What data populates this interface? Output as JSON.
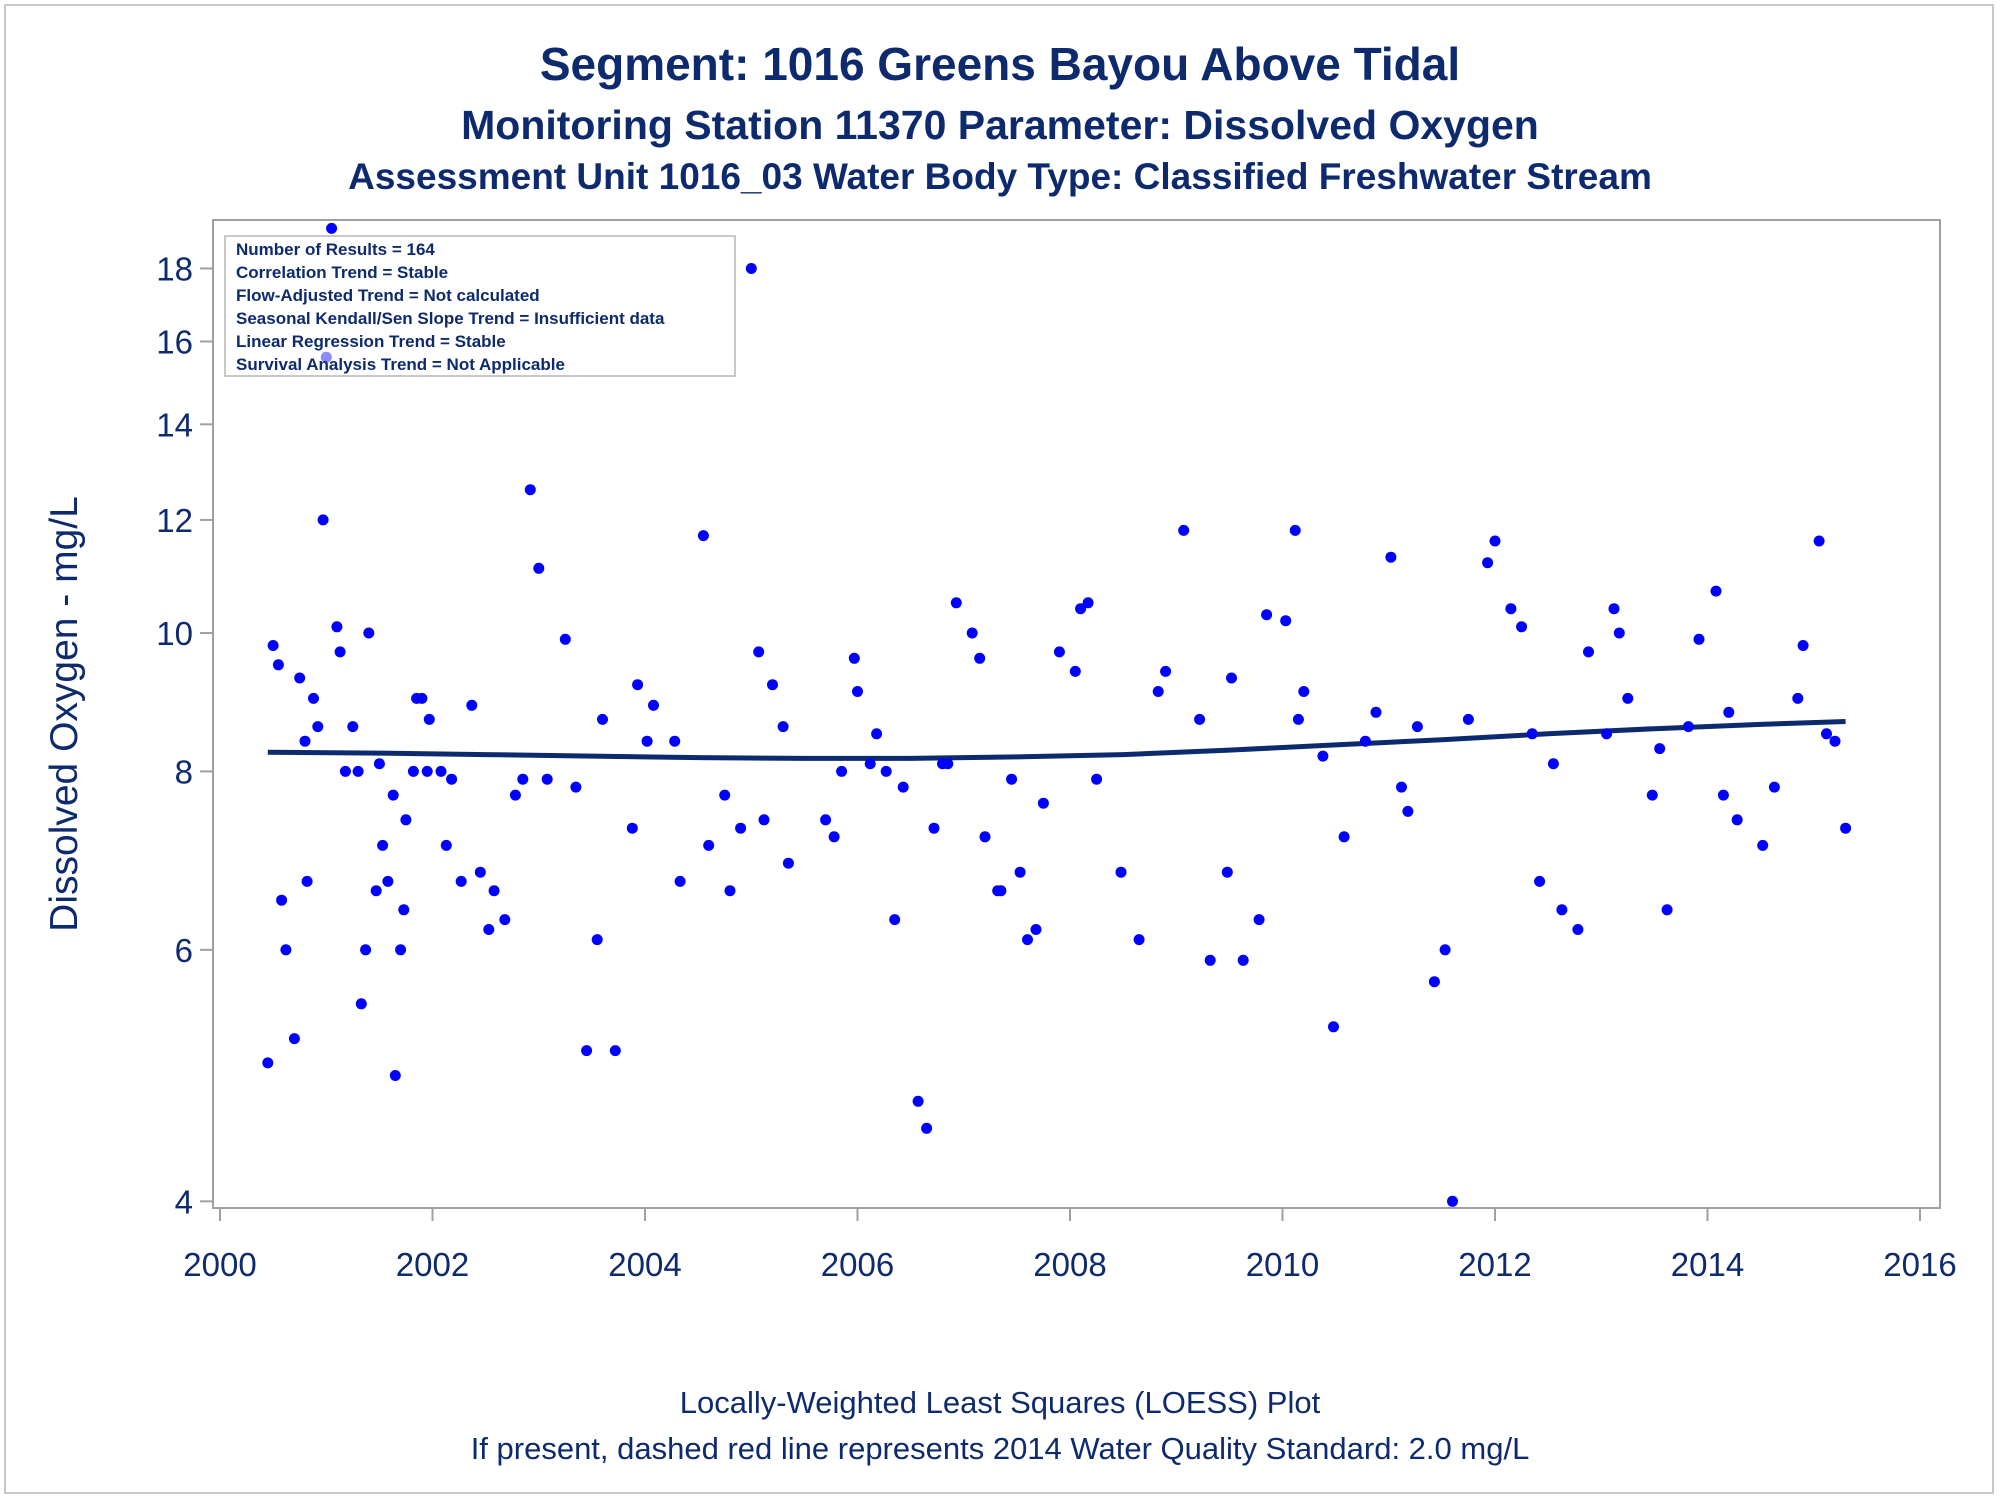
{
  "titles": {
    "line1": "Segment: 1016  Greens Bayou Above Tidal",
    "line2": "Monitoring Station 11370 Parameter: Dissolved Oxygen",
    "line3": "Assessment Unit 1016_03   Water Body Type: Classified Freshwater Stream"
  },
  "inset": {
    "lines": [
      "Number of Results = 164",
      "Correlation Trend = Stable",
      "Flow-Adjusted Trend = Not calculated",
      "Seasonal Kendall/Sen Slope Trend = Insufficient data",
      "Linear Regression Trend = Stable",
      "Survival Analysis Trend = Not Applicable"
    ]
  },
  "footer": {
    "line1": "Locally-Weighted Least Squares (LOESS) Plot",
    "line2": "If present, dashed red line represents 2014 Water Quality Standard: 2.0 mg/L"
  },
  "colors": {
    "points": "#0000ff",
    "loess": "#0e2a6e",
    "text": "#0e2a6e",
    "axis": "#a0a0a0"
  },
  "chart_data": {
    "type": "scatter",
    "ylabel": "Dissolved Oxygen - mg/L",
    "xlabel": "",
    "y_scale": "log",
    "xlim": [
      2000,
      2016
    ],
    "ylim": [
      3.97,
      19.4
    ],
    "x_ticks": [
      2000,
      2002,
      2004,
      2006,
      2008,
      2010,
      2012,
      2014,
      2016
    ],
    "y_ticks": [
      4,
      6,
      8,
      10,
      12,
      14,
      16,
      18
    ],
    "grid": false,
    "points": [
      [
        2000.45,
        5.0
      ],
      [
        2000.5,
        9.8
      ],
      [
        2000.55,
        9.5
      ],
      [
        2000.58,
        6.5
      ],
      [
        2000.62,
        6.0
      ],
      [
        2000.7,
        5.2
      ],
      [
        2000.75,
        9.3
      ],
      [
        2000.8,
        8.4
      ],
      [
        2000.82,
        6.7
      ],
      [
        2000.88,
        9.0
      ],
      [
        2000.92,
        8.6
      ],
      [
        2000.97,
        12.0
      ],
      [
        2001.0,
        15.6
      ],
      [
        2001.05,
        19.2
      ],
      [
        2001.1,
        10.1
      ],
      [
        2001.13,
        9.7
      ],
      [
        2001.18,
        8.0
      ],
      [
        2001.25,
        8.6
      ],
      [
        2001.3,
        8.0
      ],
      [
        2001.33,
        5.5
      ],
      [
        2001.37,
        6.0
      ],
      [
        2001.4,
        10.0
      ],
      [
        2001.47,
        6.6
      ],
      [
        2001.5,
        8.1
      ],
      [
        2001.53,
        7.1
      ],
      [
        2001.58,
        6.7
      ],
      [
        2001.63,
        7.7
      ],
      [
        2001.65,
        4.9
      ],
      [
        2001.7,
        6.0
      ],
      [
        2001.73,
        6.4
      ],
      [
        2001.75,
        7.4
      ],
      [
        2001.82,
        8.0
      ],
      [
        2001.85,
        9.0
      ],
      [
        2001.9,
        9.0
      ],
      [
        2001.95,
        8.0
      ],
      [
        2001.97,
        8.7
      ],
      [
        2002.08,
        8.0
      ],
      [
        2002.13,
        7.1
      ],
      [
        2002.18,
        7.9
      ],
      [
        2002.27,
        6.7
      ],
      [
        2002.37,
        8.9
      ],
      [
        2002.45,
        6.8
      ],
      [
        2002.53,
        6.2
      ],
      [
        2002.58,
        6.6
      ],
      [
        2002.68,
        6.3
      ],
      [
        2002.78,
        7.7
      ],
      [
        2002.85,
        7.9
      ],
      [
        2002.92,
        12.6
      ],
      [
        2003.0,
        11.1
      ],
      [
        2003.08,
        7.9
      ],
      [
        2003.25,
        9.9
      ],
      [
        2003.35,
        7.8
      ],
      [
        2003.45,
        5.1
      ],
      [
        2003.55,
        6.1
      ],
      [
        2003.6,
        8.7
      ],
      [
        2003.72,
        5.1
      ],
      [
        2003.88,
        7.3
      ],
      [
        2003.93,
        9.2
      ],
      [
        2004.02,
        8.4
      ],
      [
        2004.08,
        8.9
      ],
      [
        2004.28,
        8.4
      ],
      [
        2004.33,
        6.7
      ],
      [
        2004.55,
        11.7
      ],
      [
        2004.6,
        7.1
      ],
      [
        2004.75,
        7.7
      ],
      [
        2004.8,
        6.6
      ],
      [
        2004.9,
        7.3
      ],
      [
        2005.0,
        18.0
      ],
      [
        2005.07,
        9.7
      ],
      [
        2005.12,
        7.4
      ],
      [
        2005.2,
        9.2
      ],
      [
        2005.3,
        8.6
      ],
      [
        2005.35,
        6.9
      ],
      [
        2005.7,
        7.4
      ],
      [
        2005.78,
        7.2
      ],
      [
        2005.85,
        8.0
      ],
      [
        2005.97,
        9.6
      ],
      [
        2006.0,
        9.1
      ],
      [
        2006.12,
        8.1
      ],
      [
        2006.18,
        8.5
      ],
      [
        2006.27,
        8.0
      ],
      [
        2006.35,
        6.3
      ],
      [
        2006.43,
        7.8
      ],
      [
        2006.57,
        4.7
      ],
      [
        2006.65,
        4.5
      ],
      [
        2006.72,
        7.3
      ],
      [
        2006.8,
        8.1
      ],
      [
        2006.85,
        8.1
      ],
      [
        2006.93,
        10.5
      ],
      [
        2007.08,
        10.0
      ],
      [
        2007.15,
        9.6
      ],
      [
        2007.2,
        7.2
      ],
      [
        2007.32,
        6.6
      ],
      [
        2007.35,
        6.6
      ],
      [
        2007.45,
        7.9
      ],
      [
        2007.53,
        6.8
      ],
      [
        2007.6,
        6.1
      ],
      [
        2007.68,
        6.2
      ],
      [
        2007.75,
        7.6
      ],
      [
        2007.9,
        9.7
      ],
      [
        2008.05,
        9.4
      ],
      [
        2008.1,
        10.4
      ],
      [
        2008.17,
        10.5
      ],
      [
        2008.25,
        7.9
      ],
      [
        2008.48,
        6.8
      ],
      [
        2008.65,
        6.1
      ],
      [
        2008.83,
        9.1
      ],
      [
        2008.9,
        9.4
      ],
      [
        2009.07,
        11.8
      ],
      [
        2009.22,
        8.7
      ],
      [
        2009.32,
        5.9
      ],
      [
        2009.48,
        6.8
      ],
      [
        2009.52,
        9.3
      ],
      [
        2009.63,
        5.9
      ],
      [
        2009.78,
        6.3
      ],
      [
        2009.85,
        10.3
      ],
      [
        2010.03,
        10.2
      ],
      [
        2010.12,
        11.8
      ],
      [
        2010.15,
        8.7
      ],
      [
        2010.2,
        9.1
      ],
      [
        2010.38,
        8.2
      ],
      [
        2010.48,
        5.3
      ],
      [
        2010.58,
        7.2
      ],
      [
        2010.78,
        8.4
      ],
      [
        2010.88,
        8.8
      ],
      [
        2011.02,
        11.3
      ],
      [
        2011.12,
        7.8
      ],
      [
        2011.18,
        7.5
      ],
      [
        2011.27,
        8.6
      ],
      [
        2011.43,
        5.7
      ],
      [
        2011.53,
        6.0
      ],
      [
        2011.6,
        4.0
      ],
      [
        2011.75,
        8.7
      ],
      [
        2011.93,
        11.2
      ],
      [
        2012.0,
        11.6
      ],
      [
        2012.15,
        10.4
      ],
      [
        2012.25,
        10.1
      ],
      [
        2012.35,
        8.5
      ],
      [
        2012.42,
        6.7
      ],
      [
        2012.55,
        8.1
      ],
      [
        2012.63,
        6.4
      ],
      [
        2012.78,
        6.2
      ],
      [
        2012.88,
        9.7
      ],
      [
        2013.05,
        8.5
      ],
      [
        2013.12,
        10.4
      ],
      [
        2013.17,
        10.0
      ],
      [
        2013.25,
        9.0
      ],
      [
        2013.48,
        7.7
      ],
      [
        2013.55,
        8.3
      ],
      [
        2013.62,
        6.4
      ],
      [
        2013.82,
        8.6
      ],
      [
        2013.92,
        9.9
      ],
      [
        2014.08,
        10.7
      ],
      [
        2014.15,
        7.7
      ],
      [
        2014.2,
        8.8
      ],
      [
        2014.28,
        7.4
      ],
      [
        2014.52,
        7.1
      ],
      [
        2014.63,
        7.8
      ],
      [
        2014.85,
        9.0
      ],
      [
        2014.9,
        9.8
      ],
      [
        2015.05,
        11.6
      ],
      [
        2015.12,
        8.5
      ],
      [
        2015.2,
        8.4
      ],
      [
        2015.3,
        7.3
      ]
    ],
    "loess": [
      [
        2000.45,
        8.25
      ],
      [
        2001.5,
        8.24
      ],
      [
        2002.5,
        8.22
      ],
      [
        2003.5,
        8.2
      ],
      [
        2004.5,
        8.18
      ],
      [
        2005.5,
        8.17
      ],
      [
        2006.5,
        8.17
      ],
      [
        2007.5,
        8.19
      ],
      [
        2008.5,
        8.22
      ],
      [
        2009.5,
        8.28
      ],
      [
        2010.5,
        8.35
      ],
      [
        2011.5,
        8.42
      ],
      [
        2012.5,
        8.5
      ],
      [
        2013.5,
        8.57
      ],
      [
        2014.5,
        8.63
      ],
      [
        2015.3,
        8.67
      ]
    ]
  }
}
